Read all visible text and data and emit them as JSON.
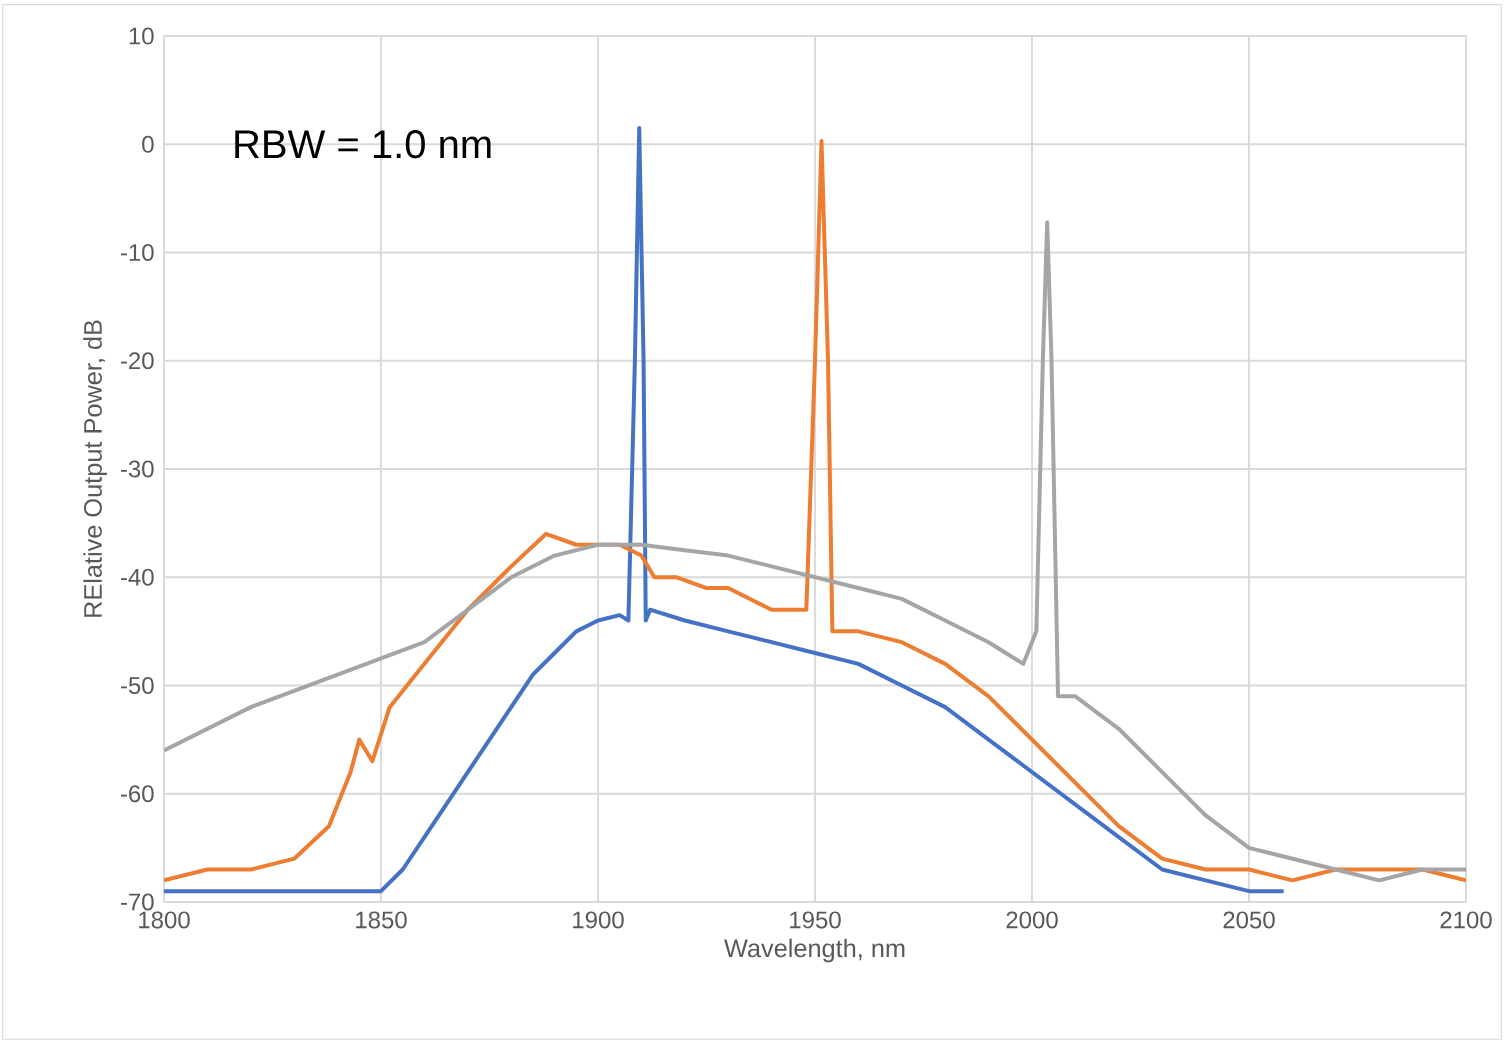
{
  "chart_data": {
    "type": "line",
    "xlabel": "Wavelength, nm",
    "ylabel": "RElative Output Power, dB",
    "annotations": [
      "RBW = 1.0 nm"
    ],
    "xlim": [
      1800,
      2100
    ],
    "xticks": [
      1800,
      1850,
      1900,
      1950,
      2000,
      2050,
      2100
    ],
    "ylim": [
      -70,
      10
    ],
    "yticks": [
      -70,
      -60,
      -50,
      -40,
      -30,
      -20,
      -10,
      0,
      10
    ],
    "grid": true,
    "marker": "none",
    "line_style": "solid",
    "series": [
      {
        "color": "#4472c4",
        "x": [
          1800,
          1810,
          1820,
          1830,
          1840,
          1850,
          1855,
          1860,
          1865,
          1870,
          1875,
          1880,
          1885,
          1890,
          1895,
          1900,
          1905,
          1907,
          1908.5,
          1909.5,
          1910.5,
          1911,
          1912,
          1920,
          1930,
          1940,
          1950,
          1960,
          1970,
          1980,
          1990,
          2000,
          2010,
          2020,
          2030,
          2040,
          2050,
          2058
        ],
        "values": [
          -69,
          -69,
          -69,
          -69,
          -69,
          -69,
          -67,
          -64,
          -61,
          -58,
          -55,
          -52,
          -49,
          -47,
          -45,
          -44,
          -43.5,
          -44,
          -20,
          1.5,
          -20,
          -44,
          -43,
          -44,
          -45,
          -46,
          -47,
          -48,
          -50,
          -52,
          -55,
          -58,
          -61,
          -64,
          -67,
          -68,
          -69,
          -69
        ]
      },
      {
        "color": "#ed7d31",
        "x": [
          1800,
          1810,
          1820,
          1830,
          1838,
          1843,
          1845,
          1848,
          1852,
          1860,
          1870,
          1880,
          1888,
          1895,
          1900,
          1905,
          1910,
          1913,
          1918,
          1925,
          1930,
          1940,
          1948,
          1950,
          1951.5,
          1953,
          1954,
          1960,
          1970,
          1980,
          1990,
          2000,
          2010,
          2020,
          2030,
          2040,
          2050,
          2060,
          2070,
          2080,
          2090,
          2100
        ],
        "values": [
          -68,
          -67,
          -67,
          -66,
          -63,
          -58,
          -55,
          -57,
          -52,
          -48,
          -43,
          -39,
          -36,
          -37,
          -37,
          -37,
          -38,
          -40,
          -40,
          -41,
          -41,
          -43,
          -43,
          -20,
          0.3,
          -20,
          -45,
          -45,
          -46,
          -48,
          -51,
          -55,
          -59,
          -63,
          -66,
          -67,
          -67,
          -68,
          -67,
          -67,
          -67,
          -68
        ]
      },
      {
        "color": "#a5a5a5",
        "x": [
          1800,
          1820,
          1840,
          1860,
          1870,
          1880,
          1890,
          1900,
          1910,
          1920,
          1930,
          1940,
          1950,
          1960,
          1970,
          1980,
          1990,
          1998,
          2001,
          2002.5,
          2003.5,
          2004.5,
          2006,
          2010,
          2020,
          2030,
          2040,
          2050,
          2060,
          2070,
          2080,
          2090,
          2100
        ],
        "values": [
          -56,
          -52,
          -49,
          -46,
          -43,
          -40,
          -38,
          -37,
          -37,
          -37.5,
          -38,
          -39,
          -40,
          -41,
          -42,
          -44,
          -46,
          -48,
          -45,
          -20,
          -7.2,
          -20,
          -51,
          -51,
          -54,
          -58,
          -62,
          -65,
          -66,
          -67,
          -68,
          -67,
          -67
        ]
      }
    ]
  }
}
